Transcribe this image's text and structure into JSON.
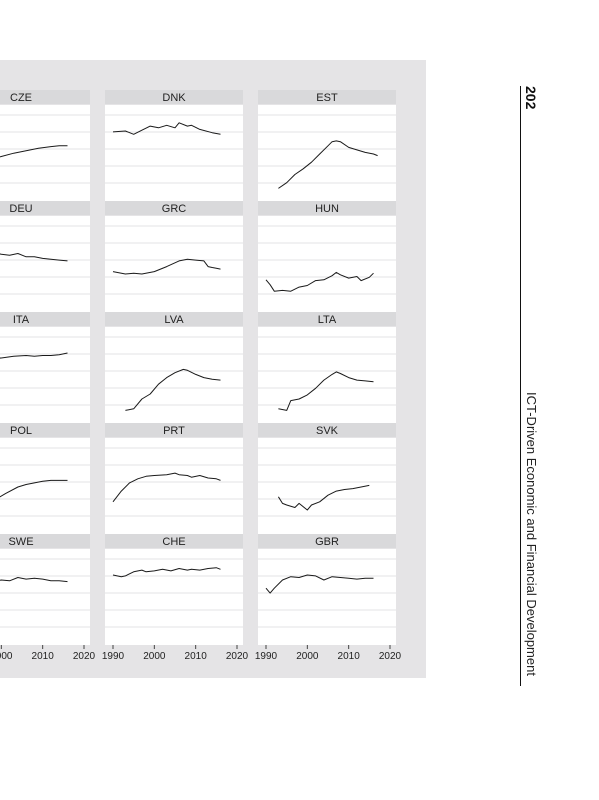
{
  "running_head": {
    "page_number": "202",
    "book_title": "ICT-Driven Economic and Financial Development"
  },
  "chart_data": {
    "type": "line",
    "layout": "small-multiples",
    "x_tick_labels": [
      "1990",
      "2000",
      "2010",
      "2020"
    ],
    "x_ticks": [
      1990,
      2000,
      2010,
      2020
    ],
    "xlim": [
      1990,
      2020
    ],
    "ylim": [
      0,
      1
    ],
    "grid": true,
    "panels": [
      {
        "name": "CZE",
        "x": [
          1993,
          1995,
          1997,
          2000,
          2003,
          2006,
          2009,
          2012,
          2014,
          2016
        ],
        "values": [
          0.43,
          0.45,
          0.43,
          0.47,
          0.51,
          0.54,
          0.57,
          0.59,
          0.6,
          0.6
        ]
      },
      {
        "name": "DNK",
        "x": [
          1990,
          1993,
          1995,
          1997,
          1999,
          2001,
          2003,
          2005,
          2006,
          2008,
          2009,
          2011,
          2014,
          2016
        ],
        "values": [
          0.77,
          0.78,
          0.74,
          0.79,
          0.84,
          0.82,
          0.85,
          0.82,
          0.88,
          0.84,
          0.85,
          0.8,
          0.76,
          0.74
        ]
      },
      {
        "name": "EST",
        "x": [
          1993,
          1995,
          1997,
          1999,
          2001,
          2003,
          2005,
          2006,
          2007,
          2008,
          2010,
          2012,
          2014,
          2016,
          2017
        ],
        "values": [
          0.08,
          0.15,
          0.25,
          0.32,
          0.4,
          0.5,
          0.6,
          0.65,
          0.66,
          0.65,
          0.58,
          0.55,
          0.52,
          0.5,
          0.48
        ]
      },
      {
        "name": "DEU",
        "x": [
          1990,
          1992,
          1994,
          1996,
          1998,
          2000,
          2002,
          2004,
          2006,
          2008,
          2010,
          2012,
          2014,
          2016
        ],
        "values": [
          0.68,
          0.66,
          0.66,
          0.64,
          0.66,
          0.63,
          0.62,
          0.64,
          0.6,
          0.6,
          0.58,
          0.57,
          0.56,
          0.55
        ]
      },
      {
        "name": "GRC",
        "x": [
          1990,
          1993,
          1995,
          1997,
          2000,
          2003,
          2006,
          2008,
          2010,
          2012,
          2013,
          2014,
          2015,
          2016
        ],
        "values": [
          0.42,
          0.39,
          0.4,
          0.39,
          0.42,
          0.48,
          0.55,
          0.57,
          0.56,
          0.55,
          0.48,
          0.47,
          0.46,
          0.45
        ]
      },
      {
        "name": "HUN",
        "x": [
          1990,
          1991,
          1992,
          1994,
          1996,
          1998,
          2000,
          2002,
          2004,
          2006,
          2007,
          2008,
          2010,
          2012,
          2013,
          2015,
          2016
        ],
        "values": [
          0.32,
          0.26,
          0.18,
          0.19,
          0.18,
          0.23,
          0.25,
          0.31,
          0.32,
          0.37,
          0.41,
          0.38,
          0.34,
          0.36,
          0.31,
          0.35,
          0.4
        ]
      },
      {
        "name": "ITA",
        "x": [
          1990,
          1993,
          1996,
          2000,
          2003,
          2006,
          2008,
          2010,
          2012,
          2014,
          2016
        ],
        "values": [
          0.7,
          0.7,
          0.71,
          0.72,
          0.74,
          0.75,
          0.74,
          0.75,
          0.75,
          0.76,
          0.78
        ]
      },
      {
        "name": "LVA",
        "x": [
          1993,
          1995,
          1997,
          1999,
          2001,
          2003,
          2005,
          2007,
          2008,
          2010,
          2012,
          2014,
          2016
        ],
        "values": [
          0.08,
          0.1,
          0.22,
          0.28,
          0.4,
          0.48,
          0.54,
          0.58,
          0.57,
          0.52,
          0.48,
          0.46,
          0.45
        ]
      },
      {
        "name": "LTA",
        "x": [
          1993,
          1995,
          1996,
          1998,
          2000,
          2002,
          2004,
          2006,
          2007,
          2008,
          2010,
          2012,
          2014,
          2016
        ],
        "values": [
          0.1,
          0.08,
          0.2,
          0.22,
          0.27,
          0.35,
          0.45,
          0.52,
          0.55,
          0.53,
          0.48,
          0.45,
          0.44,
          0.43
        ]
      },
      {
        "name": "POL",
        "x": [
          1990,
          1992,
          1995,
          1998,
          2001,
          2004,
          2006,
          2008,
          2010,
          2012,
          2014,
          2016
        ],
        "values": [
          0.2,
          0.2,
          0.25,
          0.33,
          0.42,
          0.5,
          0.53,
          0.55,
          0.57,
          0.58,
          0.58,
          0.58
        ]
      },
      {
        "name": "PRT",
        "x": [
          1990,
          1992,
          1994,
          1996,
          1998,
          2000,
          2003,
          2005,
          2006,
          2008,
          2009,
          2011,
          2013,
          2015,
          2016
        ],
        "values": [
          0.32,
          0.45,
          0.55,
          0.6,
          0.63,
          0.64,
          0.65,
          0.67,
          0.65,
          0.64,
          0.62,
          0.64,
          0.61,
          0.6,
          0.58
        ]
      },
      {
        "name": "SVK",
        "x": [
          1993,
          1994,
          1995,
          1997,
          1998,
          2000,
          2001,
          2003,
          2005,
          2007,
          2009,
          2011,
          2013,
          2015
        ],
        "values": [
          0.38,
          0.3,
          0.28,
          0.25,
          0.3,
          0.22,
          0.28,
          0.32,
          0.4,
          0.45,
          0.47,
          0.48,
          0.5,
          0.52
        ]
      },
      {
        "name": "SWE",
        "x": [
          1990,
          1992,
          1994,
          1996,
          1998,
          2000,
          2002,
          2004,
          2006,
          2008,
          2010,
          2012,
          2014,
          2016
        ],
        "values": [
          0.55,
          0.58,
          0.62,
          0.7,
          0.7,
          0.72,
          0.71,
          0.75,
          0.73,
          0.74,
          0.73,
          0.71,
          0.71,
          0.7
        ]
      },
      {
        "name": "CHE",
        "x": [
          1990,
          1992,
          1993,
          1995,
          1997,
          1998,
          2000,
          2002,
          2004,
          2006,
          2008,
          2009,
          2011,
          2013,
          2015,
          2016
        ],
        "values": [
          0.78,
          0.76,
          0.77,
          0.82,
          0.84,
          0.82,
          0.83,
          0.85,
          0.83,
          0.86,
          0.84,
          0.85,
          0.84,
          0.86,
          0.87,
          0.85
        ]
      },
      {
        "name": "GBR",
        "x": [
          1990,
          1991,
          1992,
          1994,
          1996,
          1998,
          2000,
          2002,
          2004,
          2006,
          2008,
          2010,
          2012,
          2014,
          2016
        ],
        "values": [
          0.62,
          0.56,
          0.62,
          0.72,
          0.76,
          0.75,
          0.78,
          0.77,
          0.72,
          0.76,
          0.75,
          0.74,
          0.73,
          0.74,
          0.74
        ]
      }
    ]
  }
}
